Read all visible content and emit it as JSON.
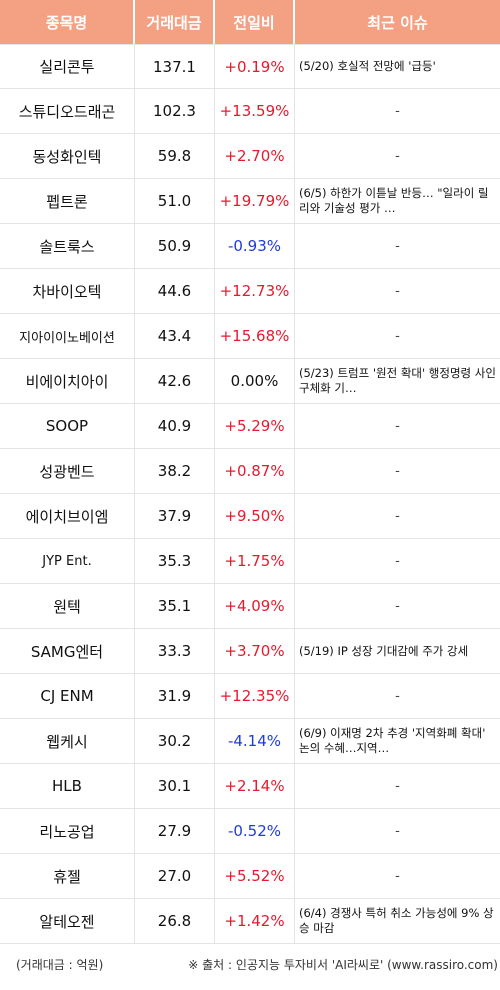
{
  "headers": {
    "name": "종목명",
    "volume": "거래대금",
    "change": "전일비",
    "issue": "최근 이슈"
  },
  "rows": [
    {
      "name": "실리콘투",
      "volume": "137.1",
      "change": "+0.19%",
      "dir": "up",
      "issue": "(5/20) 호실적 전망에 '급등'"
    },
    {
      "name": "스튜디오드래곤",
      "volume": "102.3",
      "change": "+13.59%",
      "dir": "up",
      "issue": "-"
    },
    {
      "name": "동성화인텍",
      "volume": "59.8",
      "change": "+2.70%",
      "dir": "up",
      "issue": "-"
    },
    {
      "name": "펩트론",
      "volume": "51.0",
      "change": "+19.79%",
      "dir": "up",
      "issue": "(6/5) 하한가 이튿날 반등… \"일라이 릴리와 기술성 평가 …"
    },
    {
      "name": "솔트룩스",
      "volume": "50.9",
      "change": "-0.93%",
      "dir": "down",
      "issue": "-"
    },
    {
      "name": "차바이오텍",
      "volume": "44.6",
      "change": "+12.73%",
      "dir": "up",
      "issue": "-"
    },
    {
      "name": "지아이이노베이션",
      "volume": "43.4",
      "change": "+15.68%",
      "dir": "up",
      "issue": "-"
    },
    {
      "name": "비에이치아이",
      "volume": "42.6",
      "change": "0.00%",
      "dir": "flat",
      "issue": "(5/23) 트럼프 '원전 확대' 행정명령 사인 구체화 기…"
    },
    {
      "name": "SOOP",
      "volume": "40.9",
      "change": "+5.29%",
      "dir": "up",
      "issue": "-"
    },
    {
      "name": "성광벤드",
      "volume": "38.2",
      "change": "+0.87%",
      "dir": "up",
      "issue": "-"
    },
    {
      "name": "에이치브이엠",
      "volume": "37.9",
      "change": "+9.50%",
      "dir": "up",
      "issue": "-"
    },
    {
      "name": "JYP Ent.",
      "volume": "35.3",
      "change": "+1.75%",
      "dir": "up",
      "issue": "-"
    },
    {
      "name": "원텍",
      "volume": "35.1",
      "change": "+4.09%",
      "dir": "up",
      "issue": "-"
    },
    {
      "name": "SAMG엔터",
      "volume": "33.3",
      "change": "+3.70%",
      "dir": "up",
      "issue": "(5/19) IP 성장 기대감에 주가 강세"
    },
    {
      "name": "CJ ENM",
      "volume": "31.9",
      "change": "+12.35%",
      "dir": "up",
      "issue": "-"
    },
    {
      "name": "웹케시",
      "volume": "30.2",
      "change": "-4.14%",
      "dir": "down",
      "issue": "(6/9) 이재명 2차 추경 '지역화폐 확대' 논의 수혜…지역…"
    },
    {
      "name": "HLB",
      "volume": "30.1",
      "change": "+2.14%",
      "dir": "up",
      "issue": "-"
    },
    {
      "name": "리노공업",
      "volume": "27.9",
      "change": "-0.52%",
      "dir": "down",
      "issue": "-"
    },
    {
      "name": "휴젤",
      "volume": "27.0",
      "change": "+5.52%",
      "dir": "up",
      "issue": "-"
    },
    {
      "name": "알테오젠",
      "volume": "26.8",
      "change": "+1.42%",
      "dir": "up",
      "issue": "(6/4) 경쟁사 특허 취소 가능성에 9% 상승 마감"
    }
  ],
  "footer": {
    "unit": "(거래대금 : 억원)",
    "source": "※ 출처 : 인공지능 투자비서 'AI라씨로' (www.rassiro.com)"
  }
}
